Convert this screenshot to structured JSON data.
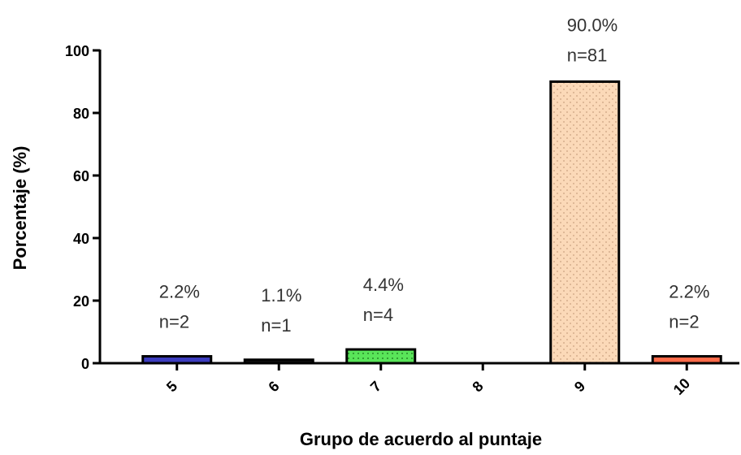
{
  "chart_data": {
    "type": "bar",
    "xlabel": "Grupo de acuerdo al puntaje",
    "ylabel": "Porcentaje (%)",
    "ylim": [
      0,
      100
    ],
    "yticks": [
      0,
      20,
      40,
      60,
      80,
      100
    ],
    "grid": false,
    "categories": [
      "5",
      "6",
      "7",
      "8",
      "9",
      "10"
    ],
    "values": [
      2.2,
      1.1,
      4.4,
      0,
      90.0,
      2.2
    ],
    "bar_labels": [
      {
        "pct": "2.2%",
        "n": "n=2"
      },
      {
        "pct": "1.1%",
        "n": "n=1"
      },
      {
        "pct": "4.4%",
        "n": "n=4"
      },
      {
        "pct": "",
        "n": ""
      },
      {
        "pct": "90.0%",
        "n": "n=81"
      },
      {
        "pct": "2.2%",
        "n": "n=2"
      }
    ],
    "bar_fills": [
      "#3d3dbf",
      "#111111",
      "#59e559",
      "#ffffff",
      "#fbd9b8",
      "#ff6b4a"
    ]
  }
}
